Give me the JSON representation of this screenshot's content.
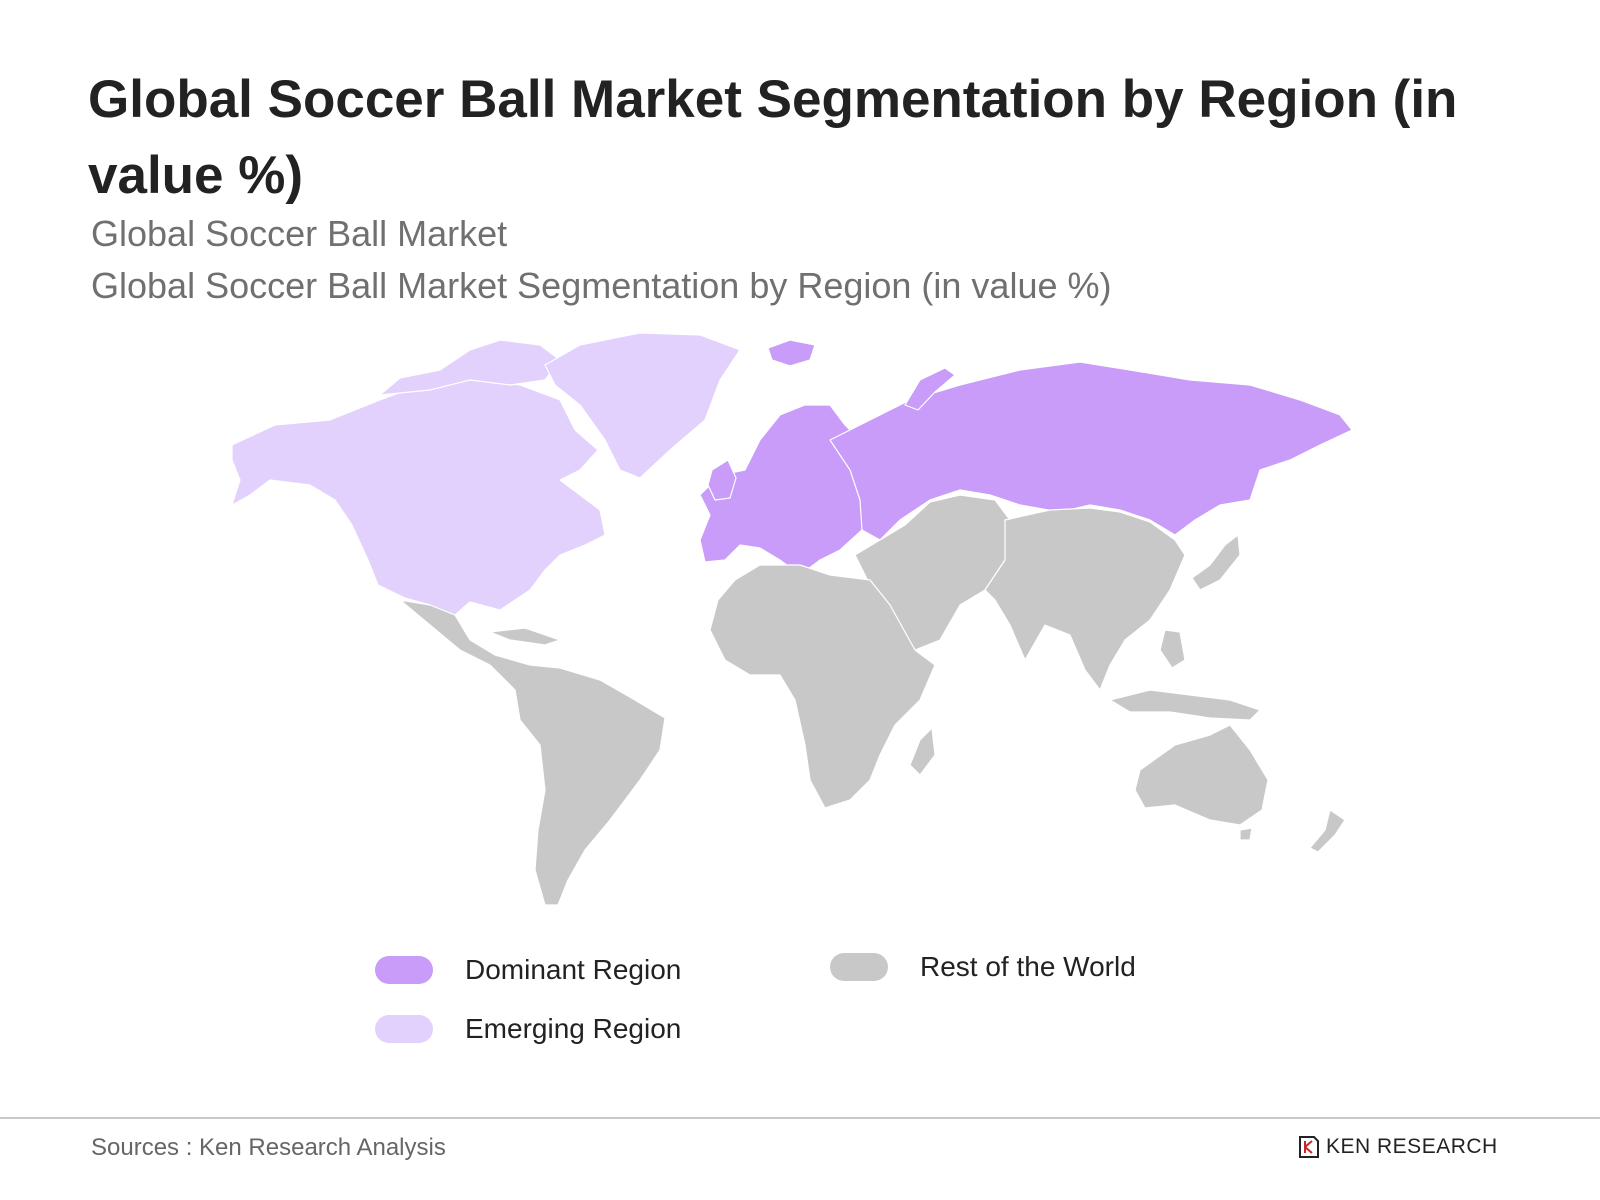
{
  "header": {
    "title": "Global Soccer Ball Market Segmentation by Region (in value %)",
    "subtitle_1": "Global Soccer Ball Market",
    "subtitle_2": "Global Soccer Ball Market Segmentation by Region (in value %)"
  },
  "map": {
    "regions": [
      {
        "name": "North America",
        "category": "emerging"
      },
      {
        "name": "Greenland",
        "category": "emerging"
      },
      {
        "name": "Europe",
        "category": "dominant"
      },
      {
        "name": "Russia",
        "category": "dominant"
      },
      {
        "name": "Latin America",
        "category": "rest"
      },
      {
        "name": "Africa",
        "category": "rest"
      },
      {
        "name": "Middle East",
        "category": "rest"
      },
      {
        "name": "Asia",
        "category": "rest"
      },
      {
        "name": "Oceania",
        "category": "rest"
      }
    ],
    "colors": {
      "dominant": "#c89cf8",
      "emerging": "#e2d0fd",
      "rest": "#c8c8c8",
      "border": "#ffffff"
    }
  },
  "legend": {
    "dominant": "Dominant Region",
    "emerging": "Emerging Region",
    "rest": "Rest of the World"
  },
  "footer": {
    "source": "Sources : Ken Research Analysis",
    "brand": "KEN RESEARCH"
  }
}
